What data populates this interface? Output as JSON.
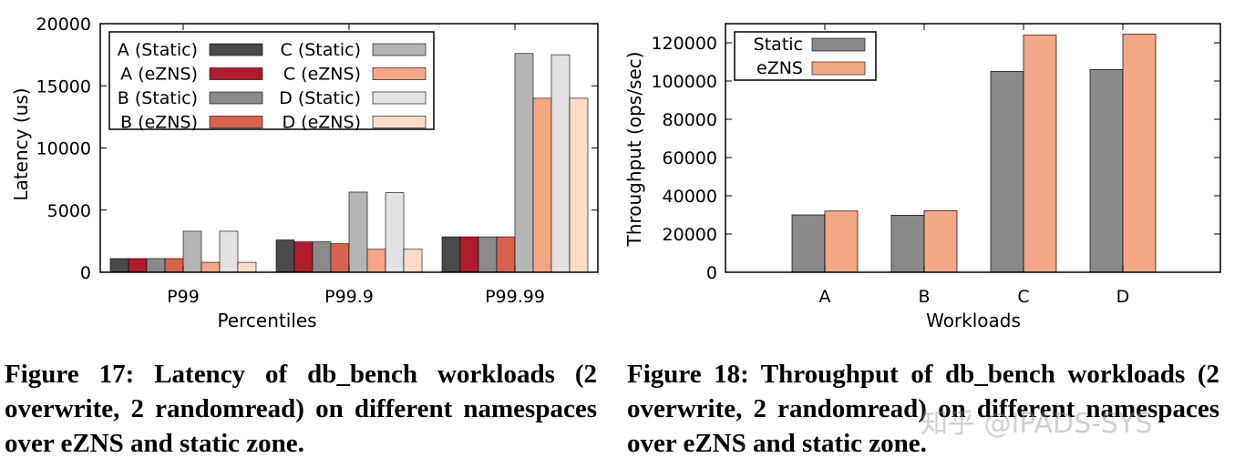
{
  "chart_data": [
    {
      "type": "bar",
      "xlabel": "Percentiles",
      "ylabel": "Latency (us)",
      "categories": [
        "P99",
        "P99.9",
        "P99.99"
      ],
      "ylim": [
        0,
        20000
      ],
      "yticks": [
        0,
        5000,
        10000,
        15000,
        20000
      ],
      "grid": false,
      "legend": "top-left, two columns",
      "series": [
        {
          "name": "A (Static)",
          "color": "#4a4a4a",
          "values": [
            1100,
            2600,
            2850
          ]
        },
        {
          "name": "A (eZNS)",
          "color": "#ae1c2e",
          "values": [
            1100,
            2450,
            2850
          ]
        },
        {
          "name": "B (Static)",
          "color": "#8a8a8a",
          "values": [
            1100,
            2450,
            2850
          ]
        },
        {
          "name": "B (eZNS)",
          "color": "#d9624e",
          "values": [
            1100,
            2300,
            2850
          ]
        },
        {
          "name": "C (Static)",
          "color": "#b5b5b5",
          "values": [
            3300,
            6450,
            17600
          ]
        },
        {
          "name": "C (eZNS)",
          "color": "#f3a786",
          "values": [
            800,
            1850,
            14000
          ]
        },
        {
          "name": "D (Static)",
          "color": "#e2e2e2",
          "values": [
            3300,
            6400,
            17500
          ]
        },
        {
          "name": "D (eZNS)",
          "color": "#fcdcc9",
          "values": [
            800,
            1850,
            14000
          ]
        }
      ]
    },
    {
      "type": "bar",
      "xlabel": "Workloads",
      "ylabel": "Throughput (ops/sec)",
      "categories": [
        "A",
        "B",
        "C",
        "D"
      ],
      "ylim": [
        0,
        130000
      ],
      "yticks": [
        0,
        20000,
        40000,
        60000,
        80000,
        100000,
        120000
      ],
      "grid": false,
      "legend": "top-left",
      "series": [
        {
          "name": "Static",
          "color": "#898989",
          "values": [
            30000,
            29800,
            105000,
            106000
          ]
        },
        {
          "name": "eZNS",
          "color": "#f3a786",
          "values": [
            32000,
            32200,
            124000,
            124500
          ]
        }
      ]
    }
  ],
  "captions": {
    "fig17": "Figure 17: Latency of db_bench workloads (2 overwrite, 2 randomread) on different namespaces over eZNS and static zone.",
    "fig18": "Figure 18: Throughput of db_bench workloads (2 overwrite, 2 randomread) on different namespaces over eZNS and static zone."
  },
  "watermark": "知乎 @IPADS-SYS"
}
